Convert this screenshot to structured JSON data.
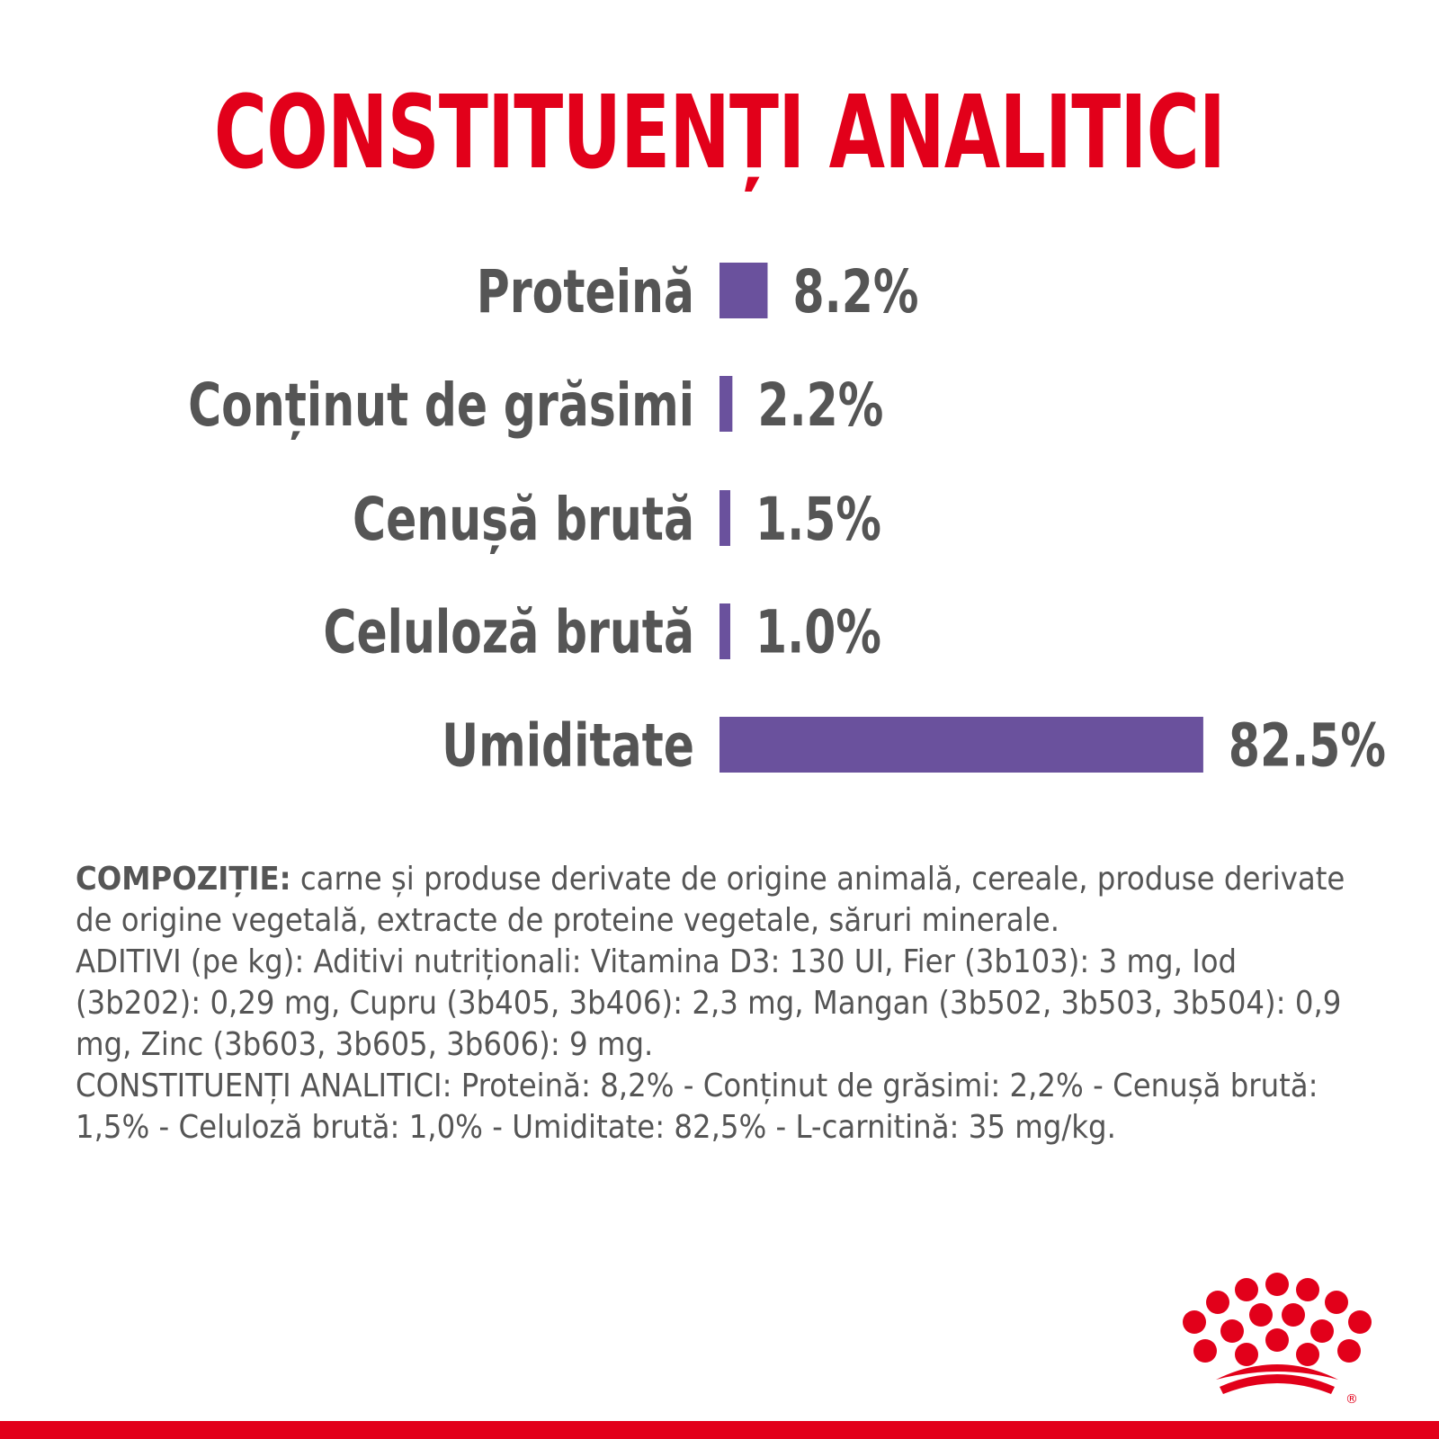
{
  "title": "CONSTITUENȚI ANALITICI",
  "colors": {
    "title": "#e2001a",
    "bar": "#6a519d",
    "text": "#555555",
    "brand": "#e2001a"
  },
  "chart_data": {
    "type": "bar",
    "orientation": "horizontal",
    "categories": [
      "Proteină",
      "Conținut de grăsimi",
      "Cenușă brută",
      "Celuloză brută",
      "Umiditate"
    ],
    "values": [
      8.2,
      2.2,
      1.5,
      1.0,
      82.5
    ],
    "value_labels": [
      "8.2%",
      "2.2%",
      "1.5%",
      "1.0%",
      "82.5%"
    ],
    "unit": "%",
    "grid": false,
    "legend": "none"
  },
  "composition": {
    "label": "COMPOZIȚIE:",
    "text": " carne și produse derivate de origine animală, cereale, produse derivate de origine vegetală, extracte de proteine vegetale, săruri minerale.",
    "additives": "ADITIVI (pe kg): Aditivi nutriționali: Vitamina D3: 130 UI, Fier (3b103): 3 mg, Iod (3b202): 0,29 mg, Cupru (3b405, 3b406): 2,3 mg, Mangan (3b502, 3b503, 3b504): 0,9 mg, Zinc (3b603, 3b605, 3b606): 9 mg.",
    "analytical": "CONSTITUENȚI ANALITICI: Proteină: 8,2% - Conținut de grăsimi: 2,2% - Cenușă brută: 1,5% - Celuloză brută: 1,0% - Umiditate: 82,5% - L-carnitină: 35 mg/kg."
  },
  "logo": {
    "icon": "royal-canin-crown-logo",
    "mark": "®"
  }
}
